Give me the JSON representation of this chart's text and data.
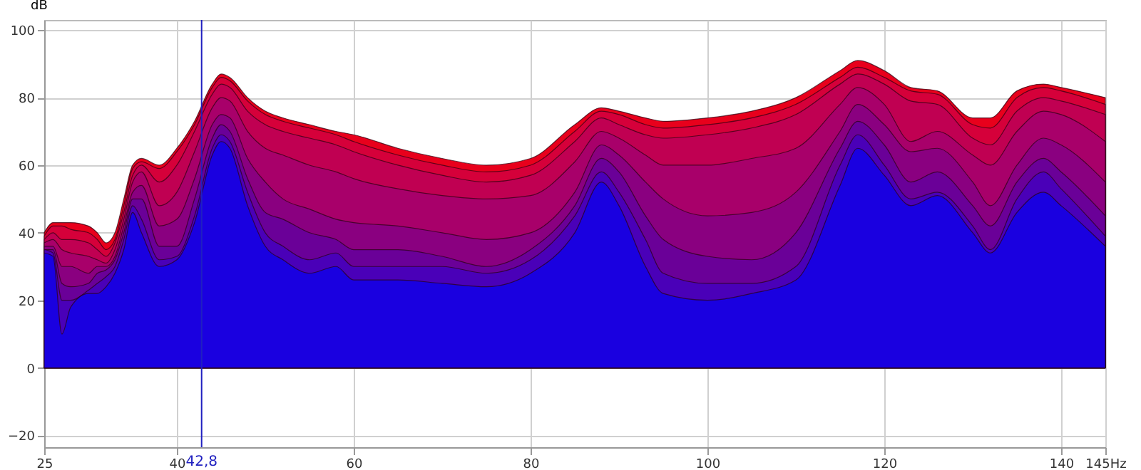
{
  "chart_data": {
    "type": "area",
    "ylabel": "dB",
    "x": [
      25,
      26,
      27,
      28,
      30,
      31,
      32,
      33,
      34,
      35,
      36,
      38,
      40,
      42,
      44,
      45,
      46,
      48,
      50,
      52,
      55,
      58,
      60,
      65,
      70,
      75,
      80,
      85,
      88,
      90,
      93,
      95,
      100,
      105,
      110,
      115,
      117,
      120,
      123,
      126,
      130,
      132,
      135,
      138,
      140,
      145
    ],
    "series": [
      {
        "color": "#e8001c",
        "values": [
          40,
          43,
          43,
          43,
          42,
          40,
          37,
          40,
          50,
          60,
          62,
          60,
          65,
          73,
          84,
          87,
          86,
          80,
          76,
          74,
          72,
          70,
          69,
          65,
          62,
          60,
          62,
          72,
          77,
          76,
          74,
          73,
          74,
          76,
          80,
          88,
          91,
          88,
          83,
          82,
          74,
          74,
          82,
          84,
          83,
          80
        ]
      },
      {
        "color": "#d5003a",
        "values": [
          39,
          42,
          42,
          41,
          40,
          38,
          35,
          38,
          48,
          59,
          61,
          59,
          64,
          72,
          83,
          86,
          85,
          79,
          75,
          73,
          71,
          69,
          67,
          63,
          60,
          58,
          60,
          70,
          76,
          75,
          72,
          71,
          72,
          74,
          78,
          86,
          89,
          86,
          82,
          81,
          72,
          71,
          80,
          83,
          82,
          78
        ]
      },
      {
        "color": "#c00052",
        "values": [
          38,
          40,
          38,
          38,
          37,
          35,
          33,
          37,
          46,
          57,
          60,
          55,
          60,
          70,
          81,
          84,
          83,
          76,
          72,
          70,
          68,
          66,
          64,
          60,
          57,
          55,
          57,
          67,
          74,
          72,
          69,
          68,
          69,
          71,
          75,
          84,
          87,
          84,
          79,
          78,
          68,
          66,
          76,
          80,
          79,
          75
        ]
      },
      {
        "color": "#a8006a",
        "values": [
          37,
          38,
          35,
          34,
          33,
          32,
          31,
          35,
          44,
          55,
          58,
          48,
          52,
          64,
          77,
          80,
          79,
          70,
          65,
          63,
          60,
          58,
          56,
          53,
          51,
          50,
          51,
          61,
          70,
          68,
          63,
          60,
          60,
          62,
          65,
          78,
          83,
          78,
          67,
          70,
          63,
          60,
          70,
          76,
          75,
          67
        ]
      },
      {
        "color": "#8a0080",
        "values": [
          36,
          36,
          30,
          30,
          28,
          30,
          30,
          33,
          42,
          52,
          54,
          42,
          44,
          56,
          72,
          75,
          74,
          62,
          55,
          50,
          47,
          44,
          43,
          42,
          40,
          38,
          40,
          52,
          66,
          63,
          55,
          50,
          45,
          46,
          52,
          70,
          78,
          72,
          64,
          65,
          55,
          48,
          60,
          68,
          66,
          55
        ]
      },
      {
        "color": "#6a0098",
        "values": [
          35,
          35,
          25,
          24,
          25,
          28,
          29,
          32,
          40,
          50,
          50,
          36,
          36,
          50,
          68,
          72,
          70,
          56,
          46,
          44,
          40,
          38,
          35,
          35,
          33,
          30,
          35,
          48,
          62,
          58,
          45,
          38,
          33,
          32,
          40,
          65,
          73,
          66,
          55,
          58,
          48,
          42,
          55,
          62,
          58,
          45
        ]
      },
      {
        "color": "#4a00b8",
        "values": [
          35,
          34,
          20,
          20,
          23,
          25,
          27,
          30,
          38,
          48,
          44,
          32,
          33,
          45,
          65,
          69,
          67,
          52,
          40,
          36,
          32,
          34,
          30,
          30,
          30,
          28,
          32,
          45,
          58,
          52,
          38,
          28,
          25,
          25,
          30,
          60,
          69,
          60,
          50,
          52,
          42,
          35,
          50,
          58,
          53,
          39
        ]
      },
      {
        "color": "#1a00e0",
        "values": [
          34,
          33,
          10,
          18,
          22,
          22,
          24,
          28,
          35,
          46,
          40,
          30,
          32,
          43,
          63,
          67,
          65,
          48,
          36,
          32,
          28,
          30,
          26,
          26,
          25,
          24,
          28,
          40,
          55,
          48,
          30,
          22,
          20,
          22,
          26,
          54,
          65,
          57,
          48,
          51,
          40,
          34,
          46,
          52,
          48,
          36
        ]
      }
    ],
    "xlim": [
      25,
      145
    ],
    "xticks": [
      25,
      40,
      60,
      80,
      100,
      120,
      140,
      {
        "value": 145,
        "label": "145Hz"
      }
    ],
    "ylim": [
      -23.5,
      103
    ],
    "yticks": [
      -20,
      0,
      20,
      40,
      60,
      80,
      100
    ],
    "grid": true,
    "ref_lines": [
      {
        "axis": "x",
        "value": 42.8,
        "label": "42,8",
        "color": "#2020c0"
      }
    ]
  }
}
